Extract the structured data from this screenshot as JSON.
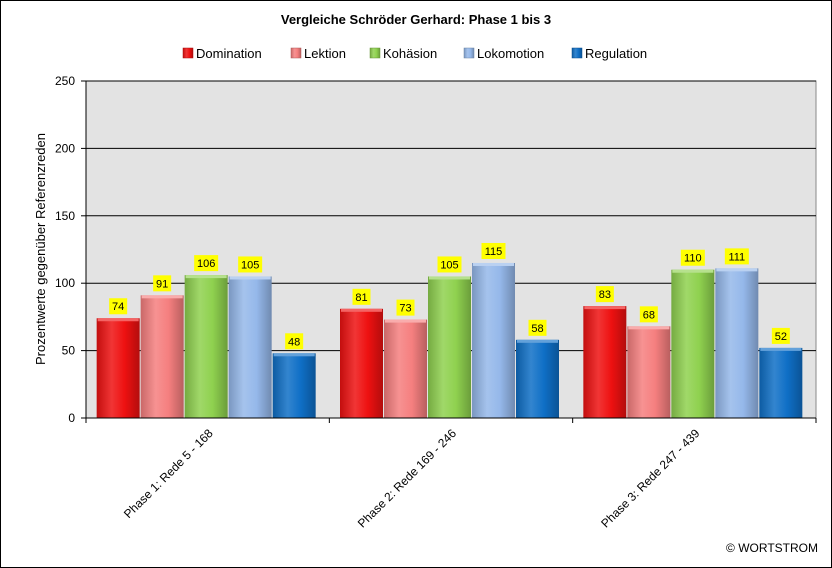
{
  "chart_data": {
    "type": "bar",
    "title": "Vergleiche Schröder Gerhard: Phase 1 bis 3",
    "xlabel": "",
    "ylabel": "Prozentwerte  gegenüber Referenzreden",
    "ylim": [
      0,
      250
    ],
    "yticks": [
      0,
      50,
      100,
      150,
      200,
      250
    ],
    "grid": true,
    "legend_position": "top",
    "categories": [
      "Phase 1: Rede 5 - 168",
      "Phase 2: Rede 169 - 246",
      "Phase 3: Rede 247 - 439"
    ],
    "series": [
      {
        "name": "Domination",
        "color": "#ee1111",
        "values": [
          74,
          81,
          83
        ]
      },
      {
        "name": "Lektion",
        "color": "#f57f7f",
        "values": [
          91,
          73,
          68
        ]
      },
      {
        "name": "Kohäsion",
        "color": "#8fd14f",
        "values": [
          106,
          105,
          110
        ]
      },
      {
        "name": "Lokomotion",
        "color": "#95b8ea",
        "values": [
          105,
          115,
          111
        ]
      },
      {
        "name": "Regulation",
        "color": "#0f6fc6",
        "values": [
          48,
          58,
          52
        ]
      }
    ],
    "data_label_background": "#ffff00",
    "plot_background": "#e3e3e3"
  },
  "copyright": "© WORTSTROM"
}
